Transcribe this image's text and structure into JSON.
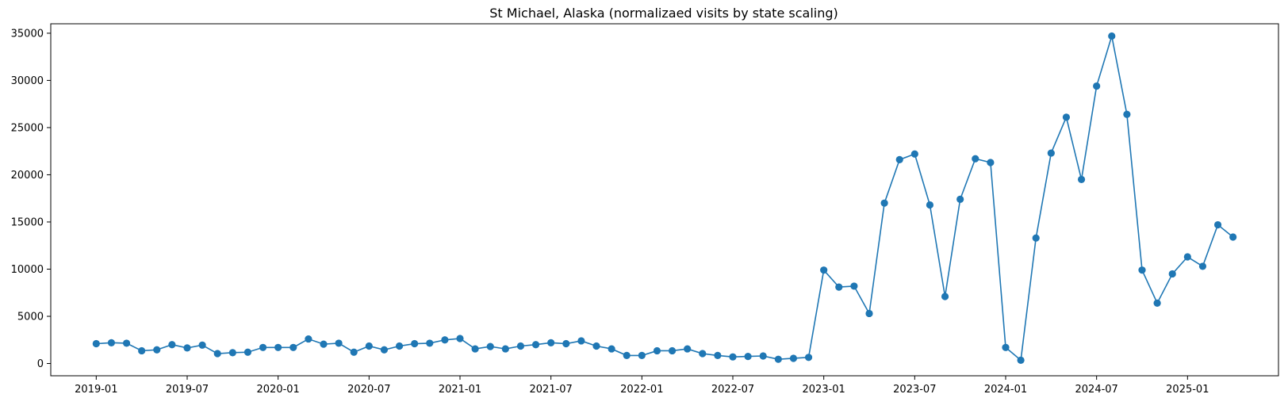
{
  "chart_data": {
    "type": "line",
    "title": "St Michael, Alaska (normalizaed visits by state scaling)",
    "xlabel": "",
    "ylabel": "",
    "color": "#1f77b4",
    "marker": "circle",
    "grid": false,
    "legend": "none",
    "xlim": [
      "2018-10-01",
      "2025-07-01"
    ],
    "ylim": [
      -1300,
      36000
    ],
    "x_ticks": [
      "2019-01",
      "2019-07",
      "2020-01",
      "2020-07",
      "2021-01",
      "2021-07",
      "2022-01",
      "2022-07",
      "2023-01",
      "2023-07",
      "2024-01",
      "2024-07",
      "2025-01"
    ],
    "y_ticks": [
      0,
      5000,
      10000,
      15000,
      20000,
      25000,
      30000,
      35000
    ],
    "series": [
      {
        "x": [
          "2019-01",
          "2019-02",
          "2019-03",
          "2019-04",
          "2019-05",
          "2019-06",
          "2019-07",
          "2019-08",
          "2019-09",
          "2019-10",
          "2019-11",
          "2019-12",
          "2020-01",
          "2020-02",
          "2020-03",
          "2020-04",
          "2020-05",
          "2020-06",
          "2020-07",
          "2020-08",
          "2020-09",
          "2020-10",
          "2020-11",
          "2020-12",
          "2021-01",
          "2021-02",
          "2021-03",
          "2021-04",
          "2021-05",
          "2021-06",
          "2021-07",
          "2021-08",
          "2021-09",
          "2021-10",
          "2021-11",
          "2021-12",
          "2022-01",
          "2022-02",
          "2022-03",
          "2022-04",
          "2022-05",
          "2022-06",
          "2022-07",
          "2022-08",
          "2022-09",
          "2022-10",
          "2022-11",
          "2022-12",
          "2023-01",
          "2023-02",
          "2023-03",
          "2023-04",
          "2023-05",
          "2023-06",
          "2023-07",
          "2023-08",
          "2023-09",
          "2023-10",
          "2023-11",
          "2023-12",
          "2024-01",
          "2024-02",
          "2024-03",
          "2024-04",
          "2024-05",
          "2024-06",
          "2024-07",
          "2024-08",
          "2024-09",
          "2024-10",
          "2024-11",
          "2024-12",
          "2025-01",
          "2025-02",
          "2025-03",
          "2025-04"
        ],
        "y": [
          2100,
          2200,
          2150,
          1350,
          1450,
          2000,
          1650,
          1950,
          1050,
          1150,
          1200,
          1700,
          1700,
          1700,
          2600,
          2050,
          2150,
          1200,
          1850,
          1450,
          1850,
          2100,
          2150,
          2500,
          2650,
          1550,
          1800,
          1550,
          1850,
          2000,
          2200,
          2100,
          2400,
          1850,
          1550,
          850,
          850,
          1350,
          1350,
          1550,
          1050,
          850,
          700,
          750,
          800,
          450,
          550,
          650,
          9900,
          8100,
          8200,
          5300,
          17000,
          21600,
          22200,
          16800,
          7100,
          17400,
          21700,
          21300,
          1700,
          350,
          13300,
          22300,
          26100,
          19500,
          29400,
          34700,
          26400,
          9900,
          6400,
          9500,
          11300,
          10300,
          14700,
          13400
        ]
      }
    ]
  }
}
